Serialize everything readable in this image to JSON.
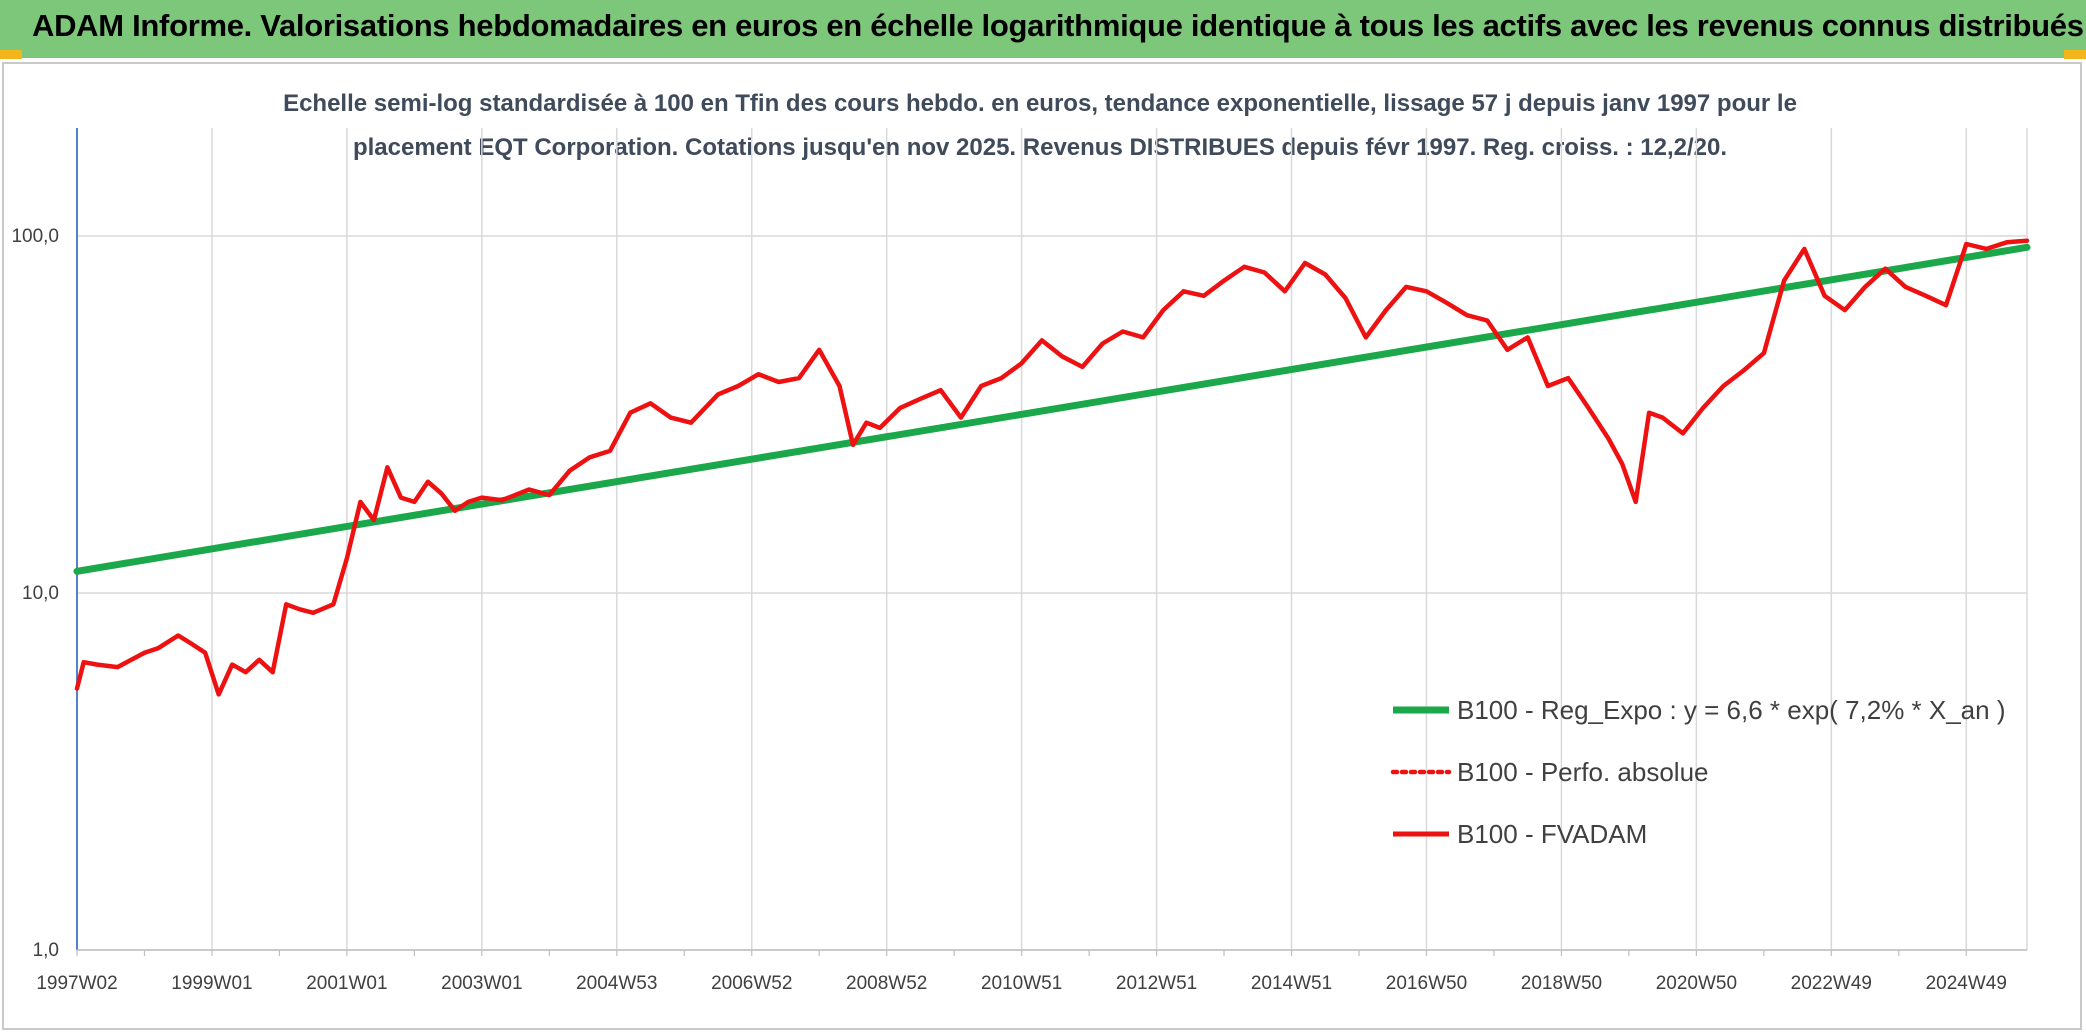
{
  "header": {
    "title": "ADAM Informe. Valorisations hebdomadaires en euros en échelle logarithmique identique à tous les actifs avec les revenus connus distribués"
  },
  "colors": {
    "header_bg": "#7dc77a",
    "regression": "#1aa84a",
    "fvadam": "#ee1111",
    "perfo": "#ee1111",
    "grid": "#d9d9d9"
  },
  "chart_data": {
    "type": "line",
    "subtitle_line1": "Echelle semi-log standardisée à 100 en Tfin des cours hebdo. en euros, tendance exponentielle, lissage 57 j depuis janv 1997 pour le",
    "subtitle_line2": "placement EQT Corporation. Cotations jusqu'en nov 2025. Revenus DISTRIBUES depuis févr 1997. Reg. croiss. : 12,2/20.",
    "y_scale": "log",
    "ylim": [
      1,
      200
    ],
    "y_ticks": [
      1,
      10,
      100
    ],
    "y_tick_labels": [
      "1,0",
      "10,0",
      "100,0"
    ],
    "xlim": [
      1997.0,
      2025.9
    ],
    "x_tick_labels": [
      "1997W02",
      "1999W01",
      "2001W01",
      "2003W01",
      "2004W53",
      "2006W52",
      "2008W52",
      "2010W51",
      "2012W51",
      "2014W51",
      "2016W50",
      "2018W50",
      "2020W50",
      "2022W49",
      "2024W49"
    ],
    "x_tick_positions": [
      1997.0,
      1999.0,
      2001.0,
      2003.0,
      2005.0,
      2007.0,
      2009.0,
      2011.0,
      2013.0,
      2015.0,
      2017.0,
      2019.0,
      2021.0,
      2023.0,
      2025.0
    ],
    "grid": true,
    "legend_position": "lower-right",
    "series": [
      {
        "name": "B100 - Reg_Expo : y = 6,6 * exp( 7,2% *  X_an )",
        "style": "solid-thick-green",
        "x": [
          1997.0,
          2025.9
        ],
        "y": [
          11.5,
          93
        ]
      },
      {
        "name": "B100 - Perfo. absolue",
        "style": "dotted-red",
        "x": [],
        "y": []
      },
      {
        "name": "B100 - FVADAM",
        "style": "solid-red",
        "x": [
          1997.0,
          1997.1,
          1997.3,
          1997.6,
          1998.0,
          1998.2,
          1998.5,
          1998.7,
          1998.9,
          1999.1,
          1999.3,
          1999.5,
          1999.7,
          1999.9,
          2000.1,
          2000.3,
          2000.5,
          2000.8,
          2001.0,
          2001.2,
          2001.4,
          2001.6,
          2001.8,
          2002.0,
          2002.2,
          2002.4,
          2002.6,
          2002.8,
          2003.0,
          2003.3,
          2003.7,
          2004.0,
          2004.3,
          2004.6,
          2004.9,
          2005.2,
          2005.5,
          2005.8,
          2006.1,
          2006.5,
          2006.8,
          2007.1,
          2007.4,
          2007.7,
          2008.0,
          2008.3,
          2008.5,
          2008.7,
          2008.9,
          2009.2,
          2009.5,
          2009.8,
          2010.1,
          2010.4,
          2010.7,
          2011.0,
          2011.3,
          2011.6,
          2011.9,
          2012.2,
          2012.5,
          2012.8,
          2013.1,
          2013.4,
          2013.7,
          2014.0,
          2014.3,
          2014.6,
          2014.9,
          2015.2,
          2015.5,
          2015.8,
          2016.1,
          2016.4,
          2016.7,
          2017.0,
          2017.3,
          2017.6,
          2017.9,
          2018.2,
          2018.5,
          2018.8,
          2019.1,
          2019.4,
          2019.7,
          2019.9,
          2020.1,
          2020.3,
          2020.5,
          2020.8,
          2021.1,
          2021.4,
          2021.7,
          2022.0,
          2022.3,
          2022.6,
          2022.9,
          2023.2,
          2023.5,
          2023.8,
          2024.1,
          2024.4,
          2024.7,
          2025.0,
          2025.3,
          2025.6,
          2025.9
        ],
        "y": [
          5.4,
          6.4,
          6.3,
          6.2,
          6.8,
          7.0,
          7.6,
          7.2,
          6.8,
          5.2,
          6.3,
          6.0,
          6.5,
          6.0,
          9.3,
          9.0,
          8.8,
          9.3,
          12.5,
          18.0,
          16.0,
          22.5,
          18.5,
          18.0,
          20.5,
          19.0,
          17.0,
          18.0,
          18.5,
          18.2,
          19.5,
          18.8,
          22.0,
          24.0,
          25.0,
          32.0,
          34.0,
          31.0,
          30.0,
          36.0,
          38.0,
          41.0,
          39.0,
          40.0,
          48.0,
          38.0,
          26.0,
          30.0,
          29.0,
          33.0,
          35.0,
          37.0,
          31.0,
          38.0,
          40.0,
          44.0,
          51.0,
          46.0,
          43.0,
          50.0,
          54.0,
          52.0,
          62.0,
          70.0,
          68.0,
          75.0,
          82.0,
          79.0,
          70.0,
          84.0,
          78.0,
          67.0,
          52.0,
          62.0,
          72.0,
          70.0,
          65.0,
          60.0,
          58.0,
          48.0,
          52.0,
          38.0,
          40.0,
          33.0,
          27.0,
          23.0,
          18.0,
          32.0,
          31.0,
          28.0,
          33.0,
          38.0,
          42.0,
          47.0,
          75.0,
          92.0,
          68.0,
          62.0,
          72.0,
          81.0,
          72.0,
          68.0,
          64.0,
          95.0,
          92.0,
          96.0,
          97.0
        ]
      }
    ]
  }
}
